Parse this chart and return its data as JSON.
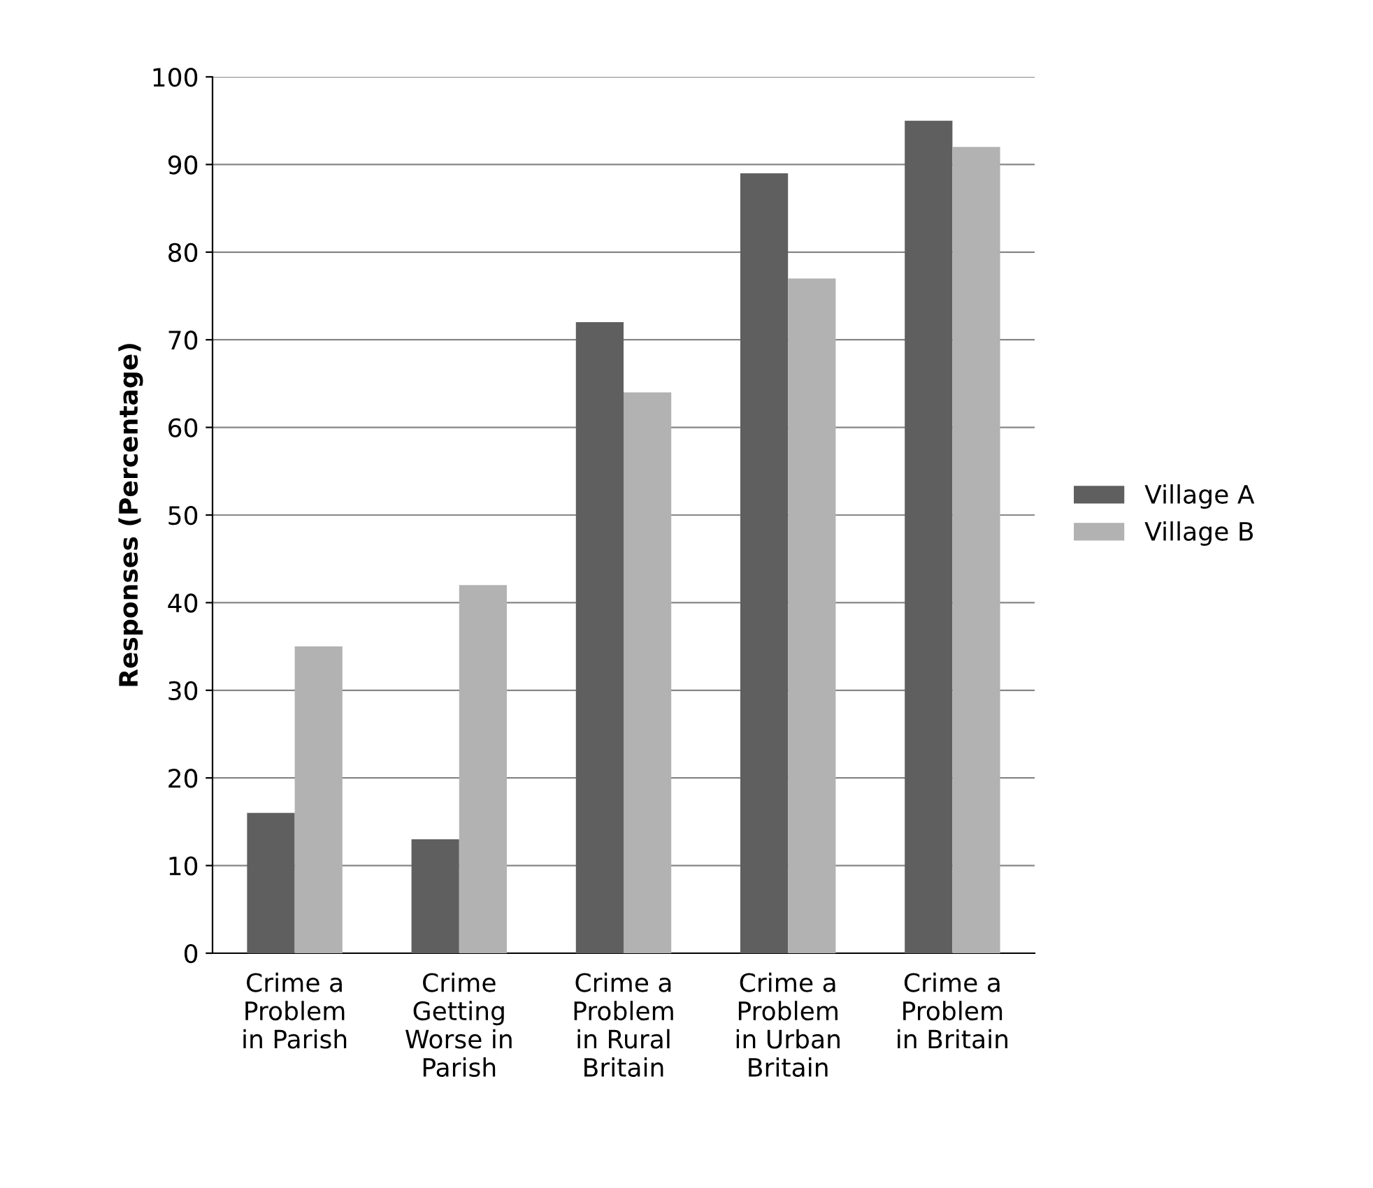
{
  "chart_data": {
    "type": "bar",
    "ylabel": "Responses (Percentage)",
    "categories": [
      "Crime a\nProblem\nin Parish",
      "Crime\nGetting\nWorse in\nParish",
      "Crime a\nProblem\nin Rural\nBritain",
      "Crime a\nProblem\nin Urban\nBritain",
      "Crime a\nProblem\nin Britain"
    ],
    "series": [
      {
        "name": "Village A",
        "color": "#5f5f5f",
        "values": [
          16,
          13,
          72,
          89,
          95
        ]
      },
      {
        "name": "Village B",
        "color": "#b2b2b2",
        "values": [
          35,
          42,
          64,
          77,
          92
        ]
      }
    ],
    "ylim": [
      0,
      100
    ],
    "yticks": [
      0,
      10,
      20,
      30,
      40,
      50,
      60,
      70,
      80,
      90,
      100
    ],
    "grid": "y",
    "legend": "right"
  }
}
